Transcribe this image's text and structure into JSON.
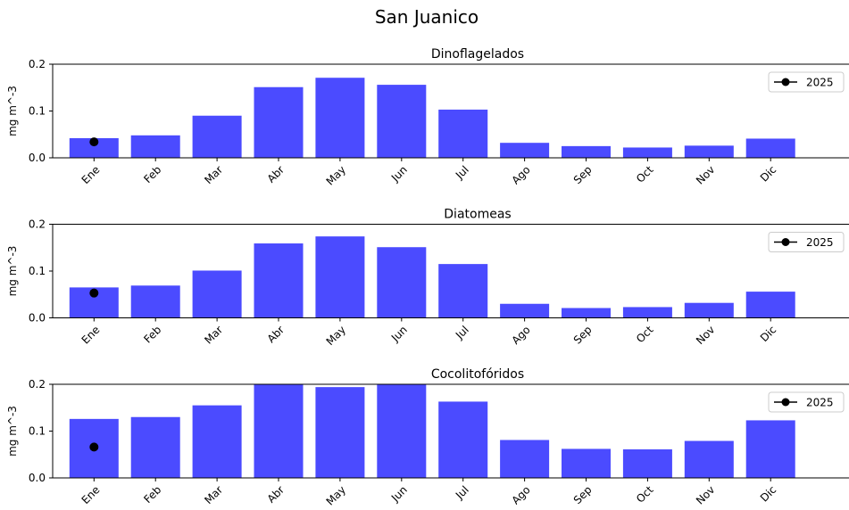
{
  "figure_title": "San Juanico",
  "colors": {
    "bar": "#4b4bff",
    "marker": "#000000",
    "axis": "#000000"
  },
  "chart_data": [
    {
      "type": "bar",
      "title": "Dinoflagelados",
      "ylabel": "mg m^-3",
      "ylim": [
        0,
        0.2
      ],
      "yticks": [
        "0.0",
        "0.1",
        "0.2"
      ],
      "categories": [
        "Ene",
        "Feb",
        "Mar",
        "Abr",
        "May",
        "Jun",
        "Jul",
        "Ago",
        "Sep",
        "Oct",
        "Nov",
        "Dic"
      ],
      "values": [
        0.042,
        0.048,
        0.09,
        0.151,
        0.171,
        0.156,
        0.103,
        0.032,
        0.025,
        0.022,
        0.026,
        0.041
      ],
      "series": [
        {
          "name": "2025",
          "type": "line-marker",
          "x": [
            "Ene"
          ],
          "values": [
            0.034
          ]
        }
      ],
      "legend": "upper right"
    },
    {
      "type": "bar",
      "title": "Diatomeas",
      "ylabel": "mg m^-3",
      "ylim": [
        0,
        0.2
      ],
      "yticks": [
        "0.0",
        "0.1",
        "0.2"
      ],
      "categories": [
        "Ene",
        "Feb",
        "Mar",
        "Abr",
        "May",
        "Jun",
        "Jul",
        "Ago",
        "Sep",
        "Oct",
        "Nov",
        "Dic"
      ],
      "values": [
        0.065,
        0.069,
        0.101,
        0.159,
        0.174,
        0.151,
        0.115,
        0.03,
        0.021,
        0.023,
        0.032,
        0.056
      ],
      "series": [
        {
          "name": "2025",
          "type": "line-marker",
          "x": [
            "Ene"
          ],
          "values": [
            0.053
          ]
        }
      ],
      "legend": "upper right"
    },
    {
      "type": "bar",
      "title": "Cocolitofóridos",
      "ylabel": "mg m^-3",
      "ylim": [
        0,
        0.2
      ],
      "yticks": [
        "0.0",
        "0.1",
        "0.2"
      ],
      "categories": [
        "Ene",
        "Feb",
        "Mar",
        "Abr",
        "May",
        "Jun",
        "Jul",
        "Ago",
        "Sep",
        "Oct",
        "Nov",
        "Dic"
      ],
      "values": [
        0.126,
        0.13,
        0.155,
        0.205,
        0.194,
        0.203,
        0.163,
        0.081,
        0.062,
        0.061,
        0.079,
        0.123
      ],
      "series": [
        {
          "name": "2025",
          "type": "line-marker",
          "x": [
            "Ene"
          ],
          "values": [
            0.066
          ]
        }
      ],
      "legend": "upper right"
    }
  ]
}
